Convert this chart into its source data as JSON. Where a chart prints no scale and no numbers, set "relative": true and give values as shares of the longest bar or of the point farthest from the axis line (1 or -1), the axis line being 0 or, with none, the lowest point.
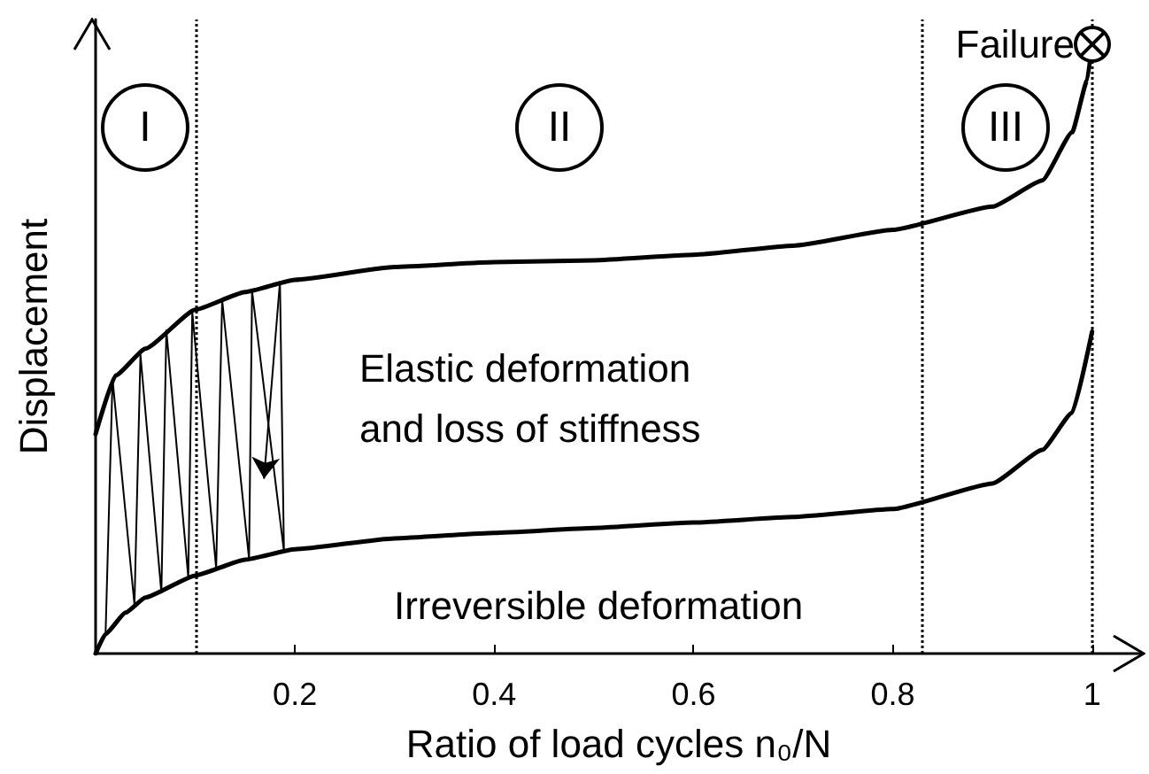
{
  "chart_data": {
    "type": "line",
    "relative": true,
    "xlabel": "Ratio of load cycles n₀/N",
    "ylabel": "Displacement",
    "xlim": [
      0,
      1.05
    ],
    "xticks": [
      0.2,
      0.4,
      0.6,
      0.8,
      1
    ],
    "series": [
      {
        "color": "#000000",
        "x": [
          0,
          0.02,
          0.05,
          0.1,
          0.15,
          0.2,
          0.3,
          0.4,
          0.5,
          0.6,
          0.7,
          0.8,
          0.9,
          0.95,
          0.98,
          0.995,
          1
        ],
        "values": [
          0.36,
          0.456,
          0.5,
          0.564,
          0.593,
          0.613,
          0.634,
          0.642,
          0.645,
          0.654,
          0.669,
          0.695,
          0.733,
          0.776,
          0.855,
          0.94,
          1
        ]
      },
      {
        "color": "#000000",
        "x": [
          0,
          0.01,
          0.03,
          0.05,
          0.1,
          0.15,
          0.2,
          0.3,
          0.4,
          0.5,
          0.6,
          0.7,
          0.8,
          0.9,
          0.95,
          0.98,
          1
        ],
        "values": [
          0,
          0.032,
          0.067,
          0.092,
          0.128,
          0.154,
          0.171,
          0.189,
          0.198,
          0.206,
          0.215,
          0.224,
          0.237,
          0.279,
          0.334,
          0.395,
          0.528
        ]
      },
      {
        "color": "#000000",
        "x": [
          0,
          0.01,
          0.017,
          0.039,
          0.045,
          0.066,
          0.071,
          0.093,
          0.097,
          0.121,
          0.127,
          0.154,
          0.157,
          0.189,
          0.185
        ],
        "values": [
          0,
          0.032,
          0.45,
          0.08,
          0.49,
          0.1,
          0.53,
          0.125,
          0.56,
          0.14,
          0.58,
          0.155,
          0.595,
          0.168,
          0.61
        ]
      }
    ],
    "ref_lines": [
      {
        "axis": "x",
        "value": 0.1,
        "label": null,
        "line_style": "dotted",
        "color": "#000000"
      },
      {
        "axis": "x",
        "value": 0.83,
        "label": null,
        "line_style": "dotted",
        "color": "#000000"
      },
      {
        "axis": "x",
        "value": 1,
        "label": null,
        "line_style": "dotted",
        "color": "#000000"
      }
    ],
    "annotations": [
      "I",
      "II",
      "III",
      "Failure",
      "Elastic deformation\nand loss of stiffness",
      "Irreversible deformation"
    ],
    "grid": false,
    "marker": "none",
    "line_style": "solid"
  }
}
